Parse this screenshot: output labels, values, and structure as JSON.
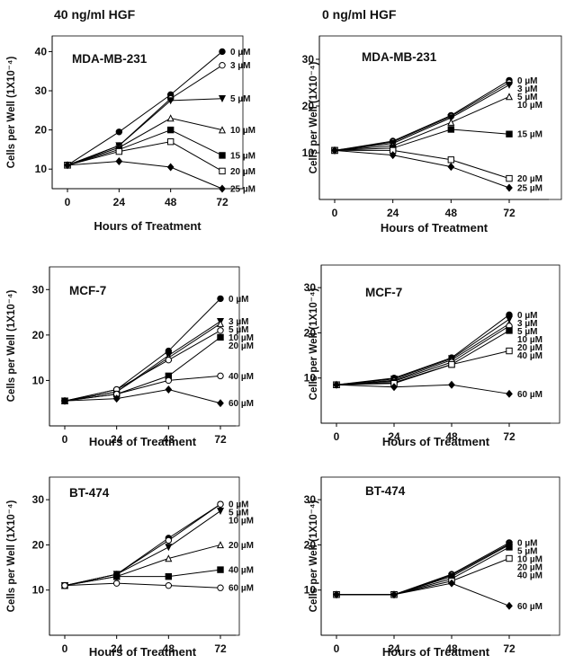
{
  "column_titles": [
    "40 ng/ml HGF",
    "0 ng/ml HGF"
  ],
  "chart_data": [
    {
      "type": "line",
      "title": "MDA-MB-231",
      "column": "40 ng/ml HGF",
      "xlabel": "Hours of Treatment",
      "ylabel": "Cells per Well (1X10⁻⁴)",
      "x": [
        0,
        24,
        48,
        72
      ],
      "ylim": [
        5,
        44
      ],
      "yticks": [
        10,
        20,
        30,
        40
      ],
      "series": [
        {
          "name": "0 µM",
          "marker": "filled-circle",
          "values": [
            11,
            19.5,
            29,
            40
          ]
        },
        {
          "name": "3 µM",
          "marker": "open-circle",
          "values": [
            11,
            16,
            28,
            36.5
          ]
        },
        {
          "name": "5 µM",
          "marker": "filled-triangle-down",
          "values": [
            11,
            16,
            27.5,
            28
          ]
        },
        {
          "name": "10 µM",
          "marker": "open-triangle",
          "values": [
            11,
            15.5,
            23,
            20
          ]
        },
        {
          "name": "15 µM",
          "marker": "filled-square",
          "values": [
            11,
            15,
            20,
            13.5
          ]
        },
        {
          "name": "20 µM",
          "marker": "open-square",
          "values": [
            11,
            14.5,
            17,
            9.5
          ]
        },
        {
          "name": "25 µM",
          "marker": "filled-diamond",
          "values": [
            11,
            12,
            10.5,
            5
          ]
        }
      ]
    },
    {
      "type": "line",
      "title": "MDA-MB-231",
      "column": "0 ng/ml HGF",
      "xlabel": "Hours of Treatment",
      "ylabel": "Cells per Well (1X10⁻⁴)",
      "x": [
        0,
        24,
        48,
        72
      ],
      "ylim": [
        0,
        35
      ],
      "yticks": [
        10,
        20,
        30
      ],
      "series": [
        {
          "name": "0 µM",
          "marker": "filled-circle",
          "values": [
            10.5,
            12.5,
            18,
            25.5
          ]
        },
        {
          "name": "3 µM",
          "marker": "open-circle",
          "values": [
            10.5,
            12.3,
            17.8,
            25
          ]
        },
        {
          "name": "5 µM",
          "marker": "filled-triangle-down",
          "values": [
            10.5,
            12,
            17.5,
            24.5
          ]
        },
        {
          "name": "10 µM",
          "marker": "open-triangle",
          "values": [
            10.5,
            11.5,
            16.5,
            22
          ]
        },
        {
          "name": "15 µM",
          "marker": "filled-square",
          "values": [
            10.5,
            11,
            15,
            14
          ]
        },
        {
          "name": "20 µM",
          "marker": "open-square",
          "values": [
            10.5,
            10.5,
            8.5,
            4.5
          ]
        },
        {
          "name": "25 µM",
          "marker": "filled-diamond",
          "values": [
            10.5,
            9.5,
            7,
            2.5
          ]
        }
      ]
    },
    {
      "type": "line",
      "title": "MCF-7",
      "column": "40 ng/ml HGF",
      "xlabel": "Hours of Treatment",
      "ylabel": "Cells per Well (1X10⁻⁴)",
      "x": [
        0,
        24,
        48,
        72
      ],
      "ylim": [
        0,
        35
      ],
      "yticks": [
        10,
        20,
        30
      ],
      "series": [
        {
          "name": "0 µM",
          "marker": "filled-circle",
          "values": [
            5.5,
            8,
            16.5,
            28
          ]
        },
        {
          "name": "3 µM",
          "marker": "filled-triangle-down",
          "values": [
            5.5,
            7.5,
            15.5,
            23
          ]
        },
        {
          "name": "5 µM",
          "marker": "open-triangle",
          "values": [
            5.5,
            7.5,
            15,
            22.5
          ]
        },
        {
          "name": "10 µM",
          "marker": "open-circle",
          "values": [
            5.5,
            8,
            14.5,
            21
          ]
        },
        {
          "name": "20 µM",
          "marker": "filled-square",
          "values": [
            5.5,
            7,
            11,
            19.5
          ]
        },
        {
          "name": "40 µM",
          "marker": "open-circle",
          "values": [
            5.5,
            7,
            10,
            11
          ]
        },
        {
          "name": "60 µM",
          "marker": "filled-diamond",
          "values": [
            5.5,
            6,
            8,
            5
          ]
        }
      ]
    },
    {
      "type": "line",
      "title": "MCF-7",
      "column": "0 ng/ml HGF",
      "xlabel": "Hours of Treatment",
      "ylabel": "Cells per Well (1X10⁻⁴)",
      "x": [
        0,
        24,
        48,
        72
      ],
      "ylim": [
        0,
        35
      ],
      "yticks": [
        10,
        20,
        30
      ],
      "series": [
        {
          "name": "0 µM",
          "marker": "filled-circle",
          "values": [
            8.5,
            10,
            14.5,
            24
          ]
        },
        {
          "name": "3 µM",
          "marker": "filled-triangle-down",
          "values": [
            8.5,
            9.8,
            14.3,
            23
          ]
        },
        {
          "name": "5 µM",
          "marker": "open-triangle",
          "values": [
            8.5,
            9.5,
            14,
            22
          ]
        },
        {
          "name": "10 µM",
          "marker": "open-circle",
          "values": [
            8.5,
            9.3,
            13.5,
            21.5
          ]
        },
        {
          "name": "20 µM",
          "marker": "filled-square",
          "values": [
            8.5,
            9,
            13,
            20.5
          ]
        },
        {
          "name": "40 µM",
          "marker": "open-square",
          "values": [
            8.5,
            8.8,
            13,
            16
          ]
        },
        {
          "name": "60 µM",
          "marker": "filled-diamond",
          "values": [
            8.5,
            8,
            8.5,
            6.5
          ]
        }
      ]
    },
    {
      "type": "line",
      "title": "BT-474",
      "column": "40 ng/ml HGF",
      "xlabel": "Hours of Treatment",
      "ylabel": "Cells per Well (1X10⁻⁴)",
      "x": [
        0,
        24,
        48,
        72
      ],
      "ylim": [
        0,
        35
      ],
      "yticks": [
        10,
        20,
        30
      ],
      "series": [
        {
          "name": "0 µM",
          "marker": "filled-circle",
          "values": [
            11,
            13.5,
            21.5,
            29
          ]
        },
        {
          "name": "5 µM",
          "marker": "open-circle",
          "values": [
            11,
            13.5,
            21,
            29
          ]
        },
        {
          "name": "10 µM",
          "marker": "filled-triangle-down",
          "values": [
            11,
            13.5,
            19.5,
            27.5
          ]
        },
        {
          "name": "20 µM",
          "marker": "open-triangle",
          "values": [
            11,
            13,
            17,
            20
          ]
        },
        {
          "name": "40 µM",
          "marker": "filled-square",
          "values": [
            11,
            13,
            13,
            14.5
          ]
        },
        {
          "name": "60 µM",
          "marker": "open-circle",
          "values": [
            11,
            11.5,
            11,
            10.5
          ]
        }
      ]
    },
    {
      "type": "line",
      "title": "BT-474",
      "column": "0 ng/ml HGF",
      "xlabel": "Hours of Treatment",
      "ylabel": "Cells per Well (1X10⁻⁴)",
      "x": [
        0,
        24,
        48,
        72
      ],
      "ylim": [
        0,
        35
      ],
      "yticks": [
        10,
        20,
        30
      ],
      "series": [
        {
          "name": "0 µM",
          "marker": "filled-circle",
          "values": [
            9,
            9,
            13.5,
            20.5
          ]
        },
        {
          "name": "5 µM",
          "marker": "open-circle",
          "values": [
            9,
            9,
            13.3,
            20.2
          ]
        },
        {
          "name": "10 µM",
          "marker": "filled-triangle-down",
          "values": [
            9,
            9,
            13,
            20
          ]
        },
        {
          "name": "20 µM",
          "marker": "filled-square",
          "values": [
            9,
            9,
            12.5,
            19.5
          ]
        },
        {
          "name": "40 µM",
          "marker": "open-square",
          "values": [
            9,
            9,
            12,
            17
          ]
        },
        {
          "name": "60 µM",
          "marker": "filled-diamond",
          "values": [
            9,
            9,
            11.5,
            6.5
          ]
        }
      ]
    }
  ]
}
